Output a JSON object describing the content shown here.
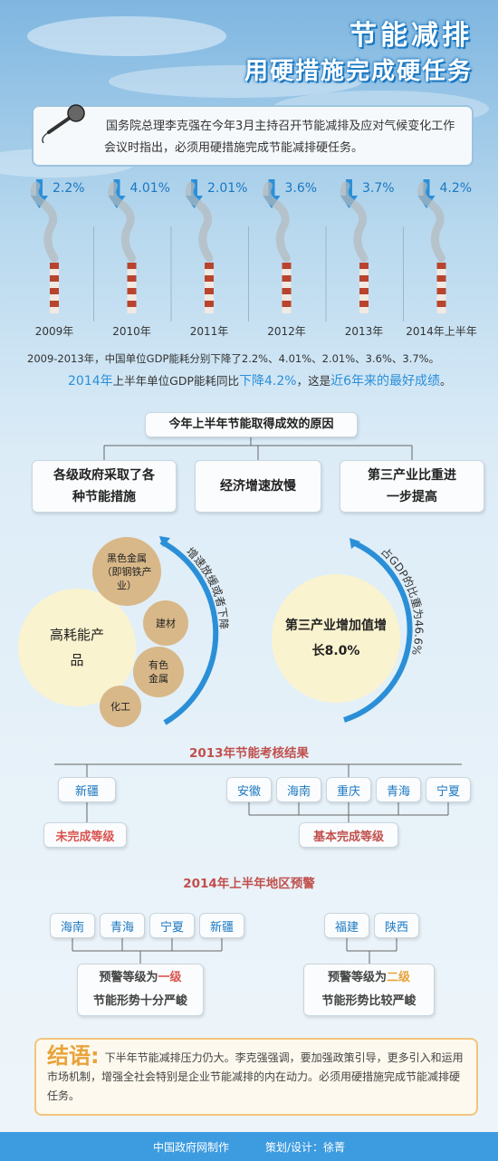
{
  "header": {
    "title": "节能减排",
    "subtitle": "用硬措施完成硬任务"
  },
  "intro": "国务院总理李克强在今年3月主持召开节能减排及应对气候变化工作会议时指出，必须用硬措施完成节能减排硬任务。",
  "years": [
    {
      "label": "2009年",
      "drop": "2.2%"
    },
    {
      "label": "2010年",
      "drop": "4.01%"
    },
    {
      "label": "2011年",
      "drop": "2.01%"
    },
    {
      "label": "2012年",
      "drop": "3.6%"
    },
    {
      "label": "2013年",
      "drop": "3.7%"
    },
    {
      "label": "2014年上半年",
      "drop": "4.2%"
    }
  ],
  "summary": {
    "line1": "2009-2013年，中国单位GDP能耗分别下降了2.2%、4.01%、2.01%、3.6%、3.7%。",
    "line2": [
      "2014年",
      "上半年单位GDP能耗同比",
      "下降4.2%",
      "，这是",
      "近6年来的最好成绩",
      "。"
    ]
  },
  "reasons": {
    "title": "今年上半年节能取得成效的原因",
    "items": [
      "各级政府采取了各种节能措施",
      "经济增速放慢",
      "第三产业比重进一步提高"
    ]
  },
  "high_energy": {
    "main": "高耗能产品",
    "items": [
      "黑色金属（即钢铁产业）",
      "建材",
      "有色金属",
      "化工"
    ],
    "arc": "增速放缓或者下降"
  },
  "tertiary": {
    "main": "第三产业增加值增长8.0%",
    "arc": "占GDP的比重为46.6%"
  },
  "assessment": {
    "title": "2013年节能考核结果",
    "groups": [
      {
        "regions": [
          "新疆"
        ],
        "result": "未完成等级"
      },
      {
        "regions": [
          "安徽",
          "海南",
          "重庆",
          "青海",
          "宁夏"
        ],
        "result": "基本完成等级"
      }
    ]
  },
  "warning": {
    "title": "2014年上半年地区预警",
    "groups": [
      {
        "regions": [
          "海南",
          "青海",
          "宁夏",
          "新疆"
        ],
        "level": [
          "预警等级为",
          "一级"
        ],
        "situation": "节能形势十分严峻"
      },
      {
        "regions": [
          "福建",
          "陕西"
        ],
        "level": [
          "预警等级为",
          "二级"
        ],
        "situation": "节能形势比较严峻"
      }
    ]
  },
  "conclusion": {
    "lead": "结语:",
    "text": "下半年节能减排压力仍大。李克强强调，要加强政策引导，更多引入和运用市场机制，增强全社会特别是企业节能减排的内在动力。必须用硬措施完成节能减排硬任务。"
  },
  "footer": {
    "producer": "中国政府网制作",
    "design": "策划/设计：徐菁"
  }
}
